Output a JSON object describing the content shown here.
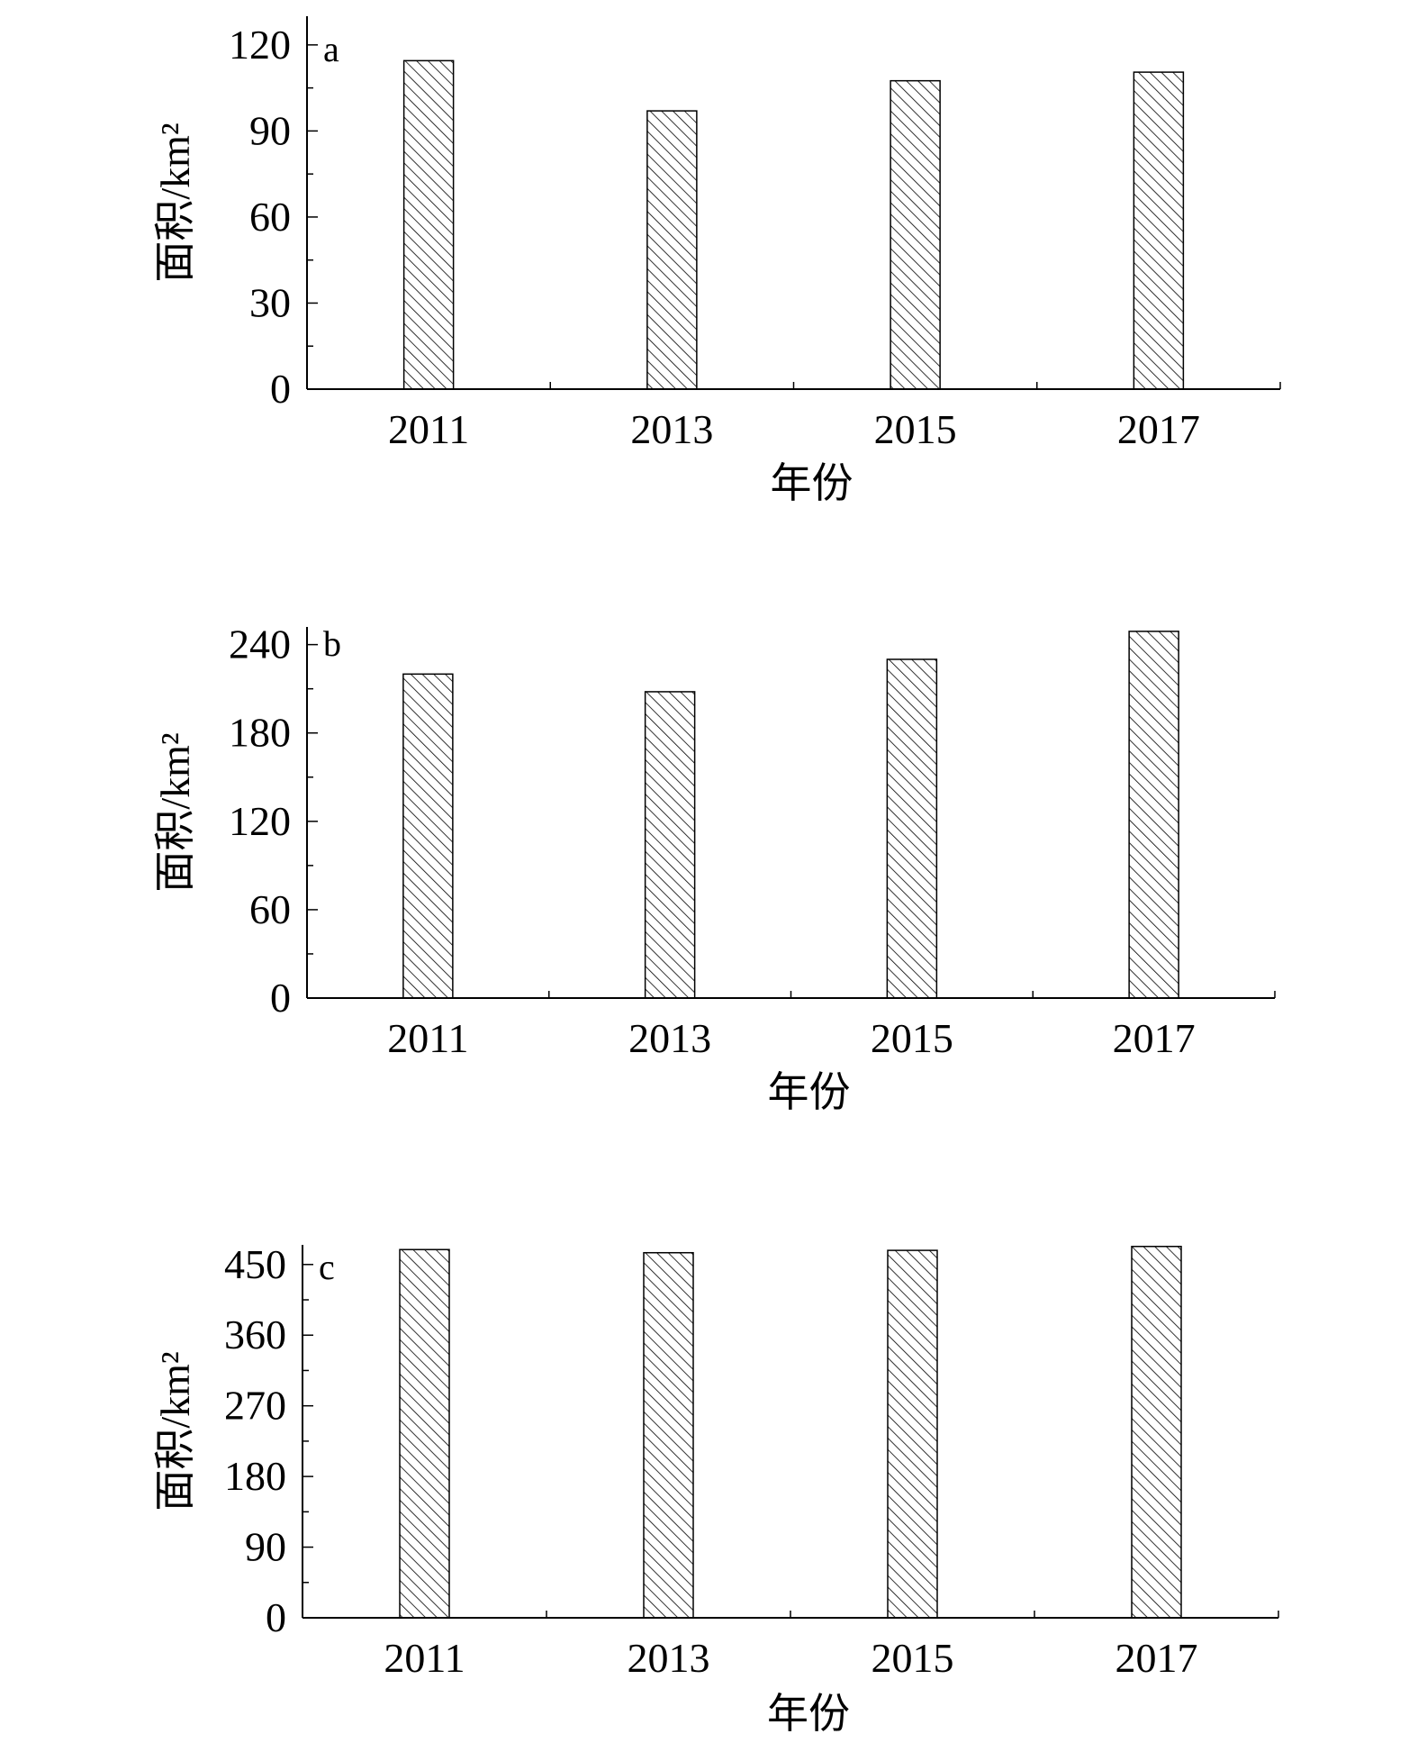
{
  "chart_data": [
    {
      "type": "bar",
      "panel_label": "a",
      "categories": [
        "2011",
        "2013",
        "2015",
        "2017"
      ],
      "values": [
        114.5,
        97,
        107.5,
        110.5
      ],
      "ylim": [
        0,
        130
      ],
      "yticks": [
        "0",
        "30",
        "60",
        "90",
        "120"
      ],
      "xlabel": "年份",
      "ylabel": "面积/km²",
      "fill": "diagonal-hatch",
      "grid": false
    },
    {
      "type": "bar",
      "panel_label": "b",
      "categories": [
        "2011",
        "2013",
        "2015",
        "2017"
      ],
      "values": [
        220,
        208,
        230,
        249
      ],
      "ylim": [
        0,
        252
      ],
      "yticks": [
        "0",
        "60",
        "120",
        "180",
        "240"
      ],
      "xlabel": "年份",
      "ylabel": "面积/km²",
      "fill": "diagonal-hatch",
      "grid": false
    },
    {
      "type": "bar",
      "panel_label": "c",
      "categories": [
        "2011",
        "2013",
        "2015",
        "2017"
      ],
      "values": [
        469,
        465,
        468,
        473
      ],
      "ylim": [
        0,
        475
      ],
      "yticks": [
        "0",
        "90",
        "180",
        "270",
        "360",
        "450"
      ],
      "xlabel": "年份",
      "ylabel": "面积/km²",
      "fill": "diagonal-hatch",
      "grid": false
    }
  ],
  "colors": {
    "axis": "#000000",
    "bar_stroke": "#000000",
    "hatch": "#000000",
    "background": "#ffffff"
  }
}
